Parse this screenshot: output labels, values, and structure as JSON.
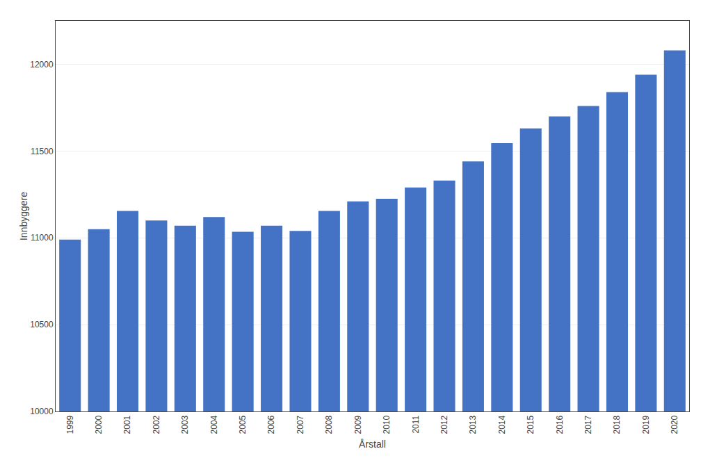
{
  "chart_data": {
    "type": "bar",
    "categories": [
      "1999",
      "2000",
      "2001",
      "2002",
      "2003",
      "2004",
      "2005",
      "2006",
      "2007",
      "2008",
      "2009",
      "2010",
      "2011",
      "2012",
      "2013",
      "2014",
      "2015",
      "2016",
      "2017",
      "2018",
      "2019",
      "2020"
    ],
    "values": [
      10990,
      11050,
      11155,
      11100,
      11070,
      11120,
      11035,
      11070,
      11040,
      11155,
      11210,
      11225,
      11290,
      11330,
      11440,
      11545,
      11630,
      11700,
      11760,
      11840,
      11940,
      12080
    ],
    "color": "#4472C4",
    "xlabel": "Årstall",
    "ylabel": "Innbyggere",
    "ylim": [
      10000,
      12250
    ],
    "yticks": [
      10000,
      10500,
      11000,
      11500,
      12000
    ],
    "grid": true
  }
}
